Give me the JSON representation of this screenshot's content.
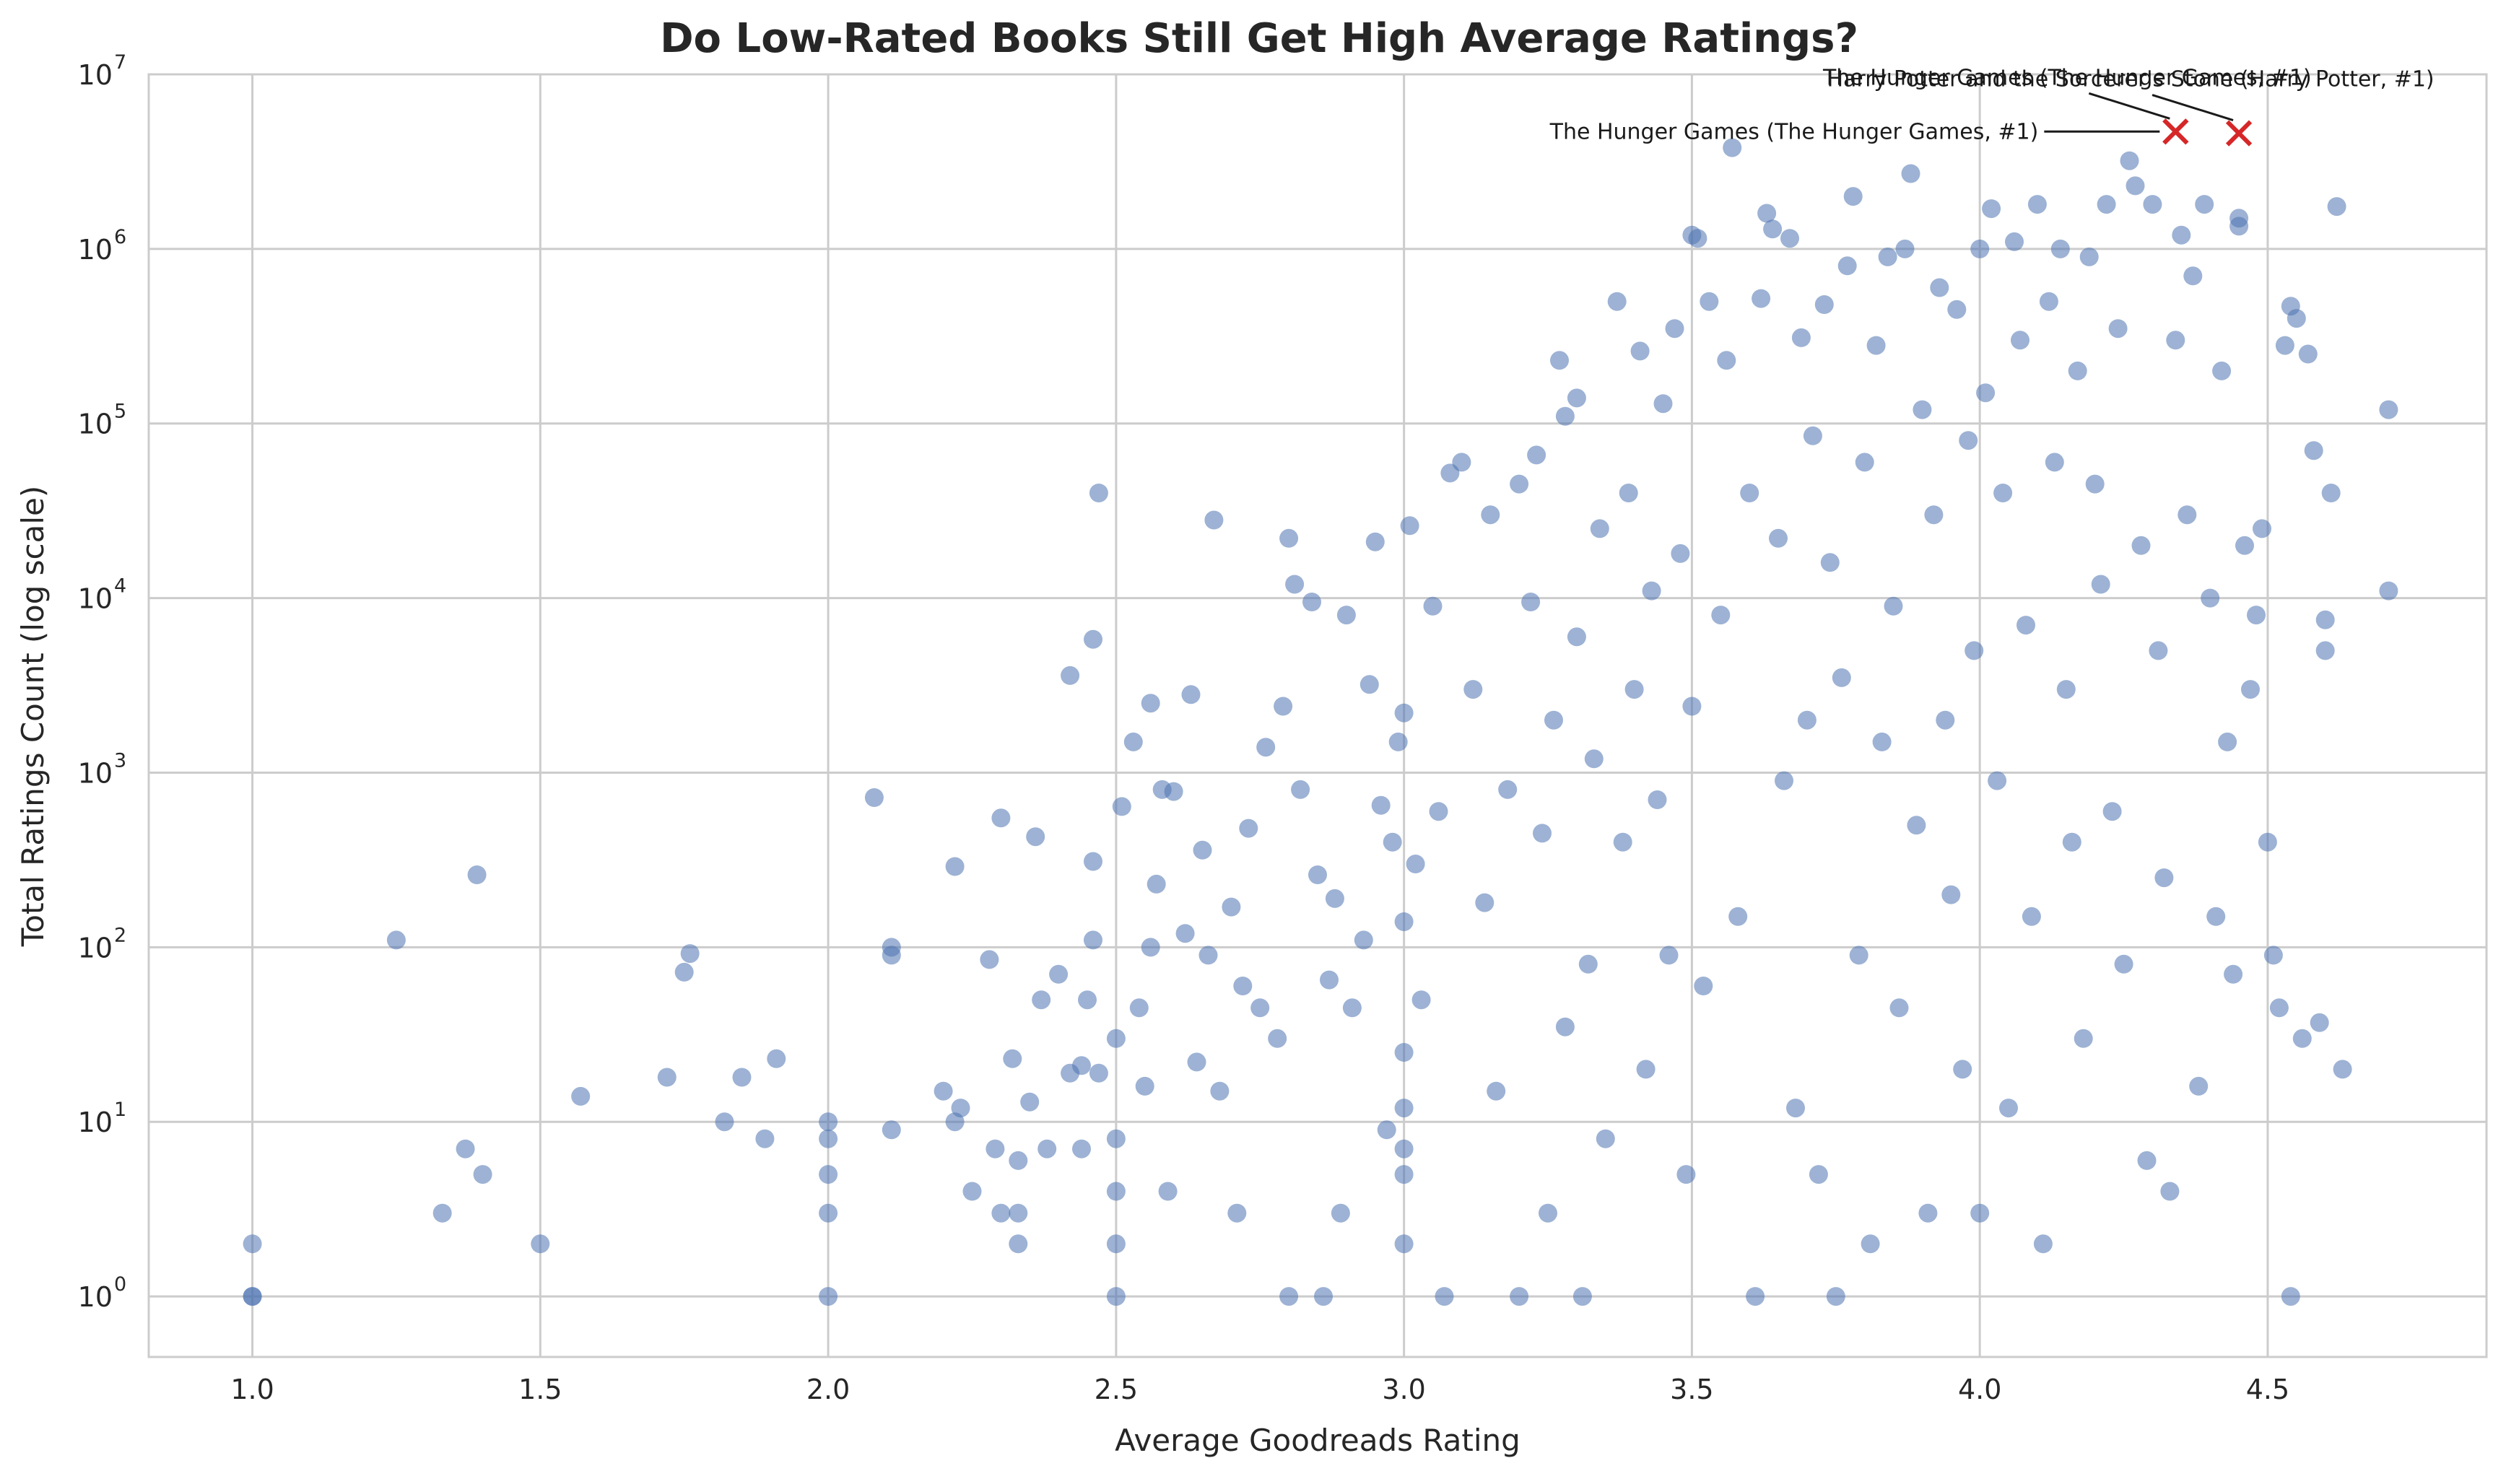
{
  "chart_data": {
    "type": "scatter",
    "title": "Do Low-Rated Books Still Get High Average Ratings?",
    "xlabel": "Average Goodreads Rating",
    "ylabel": "Total Ratings Count (log scale)",
    "xlim": [
      0.82,
      4.88
    ],
    "ylim": [
      0.45,
      10000000
    ],
    "y_scale": "log",
    "grid": true,
    "point_color": "#4c72b0",
    "highlight_color": "#d62728",
    "x_ticks": [
      {
        "value": 1.0,
        "label": "1.0"
      },
      {
        "value": 1.5,
        "label": "1.5"
      },
      {
        "value": 2.0,
        "label": "2.0"
      },
      {
        "value": 2.5,
        "label": "2.5"
      },
      {
        "value": 3.0,
        "label": "3.0"
      },
      {
        "value": 3.5,
        "label": "3.5"
      },
      {
        "value": 4.0,
        "label": "4.0"
      },
      {
        "value": 4.5,
        "label": "4.5"
      }
    ],
    "y_ticks": [
      {
        "value": 1,
        "base": "10",
        "exp": "0"
      },
      {
        "value": 10,
        "base": "10",
        "exp": "1"
      },
      {
        "value": 100,
        "base": "10",
        "exp": "2"
      },
      {
        "value": 1000,
        "base": "10",
        "exp": "3"
      },
      {
        "value": 10000,
        "base": "10",
        "exp": "4"
      },
      {
        "value": 100000,
        "base": "10",
        "exp": "5"
      },
      {
        "value": 1000000,
        "base": "10",
        "exp": "6"
      },
      {
        "value": 10000000,
        "base": "10",
        "exp": "7"
      }
    ],
    "points": [
      [
        1.0,
        1
      ],
      [
        1.0,
        2
      ],
      [
        1.0,
        1
      ],
      [
        1.25,
        110
      ],
      [
        1.33,
        3
      ],
      [
        1.37,
        7
      ],
      [
        1.39,
        260
      ],
      [
        1.4,
        5
      ],
      [
        1.5,
        2
      ],
      [
        1.57,
        14
      ],
      [
        1.72,
        18
      ],
      [
        1.75,
        72
      ],
      [
        1.76,
        92
      ],
      [
        1.82,
        10
      ],
      [
        1.85,
        18
      ],
      [
        1.89,
        8
      ],
      [
        1.91,
        23
      ],
      [
        2.0,
        1
      ],
      [
        2.0,
        3
      ],
      [
        2.0,
        5
      ],
      [
        2.0,
        8
      ],
      [
        2.0,
        10
      ],
      [
        2.08,
        720
      ],
      [
        2.11,
        90
      ],
      [
        2.11,
        100
      ],
      [
        2.11,
        9
      ],
      [
        2.2,
        15
      ],
      [
        2.22,
        290
      ],
      [
        2.22,
        10
      ],
      [
        2.23,
        12
      ],
      [
        2.25,
        4
      ],
      [
        2.28,
        85
      ],
      [
        2.29,
        7
      ],
      [
        2.3,
        550
      ],
      [
        2.3,
        3
      ],
      [
        2.32,
        23
      ],
      [
        2.33,
        3
      ],
      [
        2.33,
        2
      ],
      [
        2.33,
        6
      ],
      [
        2.35,
        13
      ],
      [
        2.36,
        430
      ],
      [
        2.37,
        50
      ],
      [
        2.38,
        7
      ],
      [
        2.4,
        70
      ],
      [
        2.42,
        3600
      ],
      [
        2.42,
        19
      ],
      [
        2.44,
        21
      ],
      [
        2.44,
        7
      ],
      [
        2.45,
        50
      ],
      [
        2.46,
        5800
      ],
      [
        2.46,
        110
      ],
      [
        2.46,
        310
      ],
      [
        2.47,
        19
      ],
      [
        2.47,
        40000
      ],
      [
        2.5,
        4
      ],
      [
        2.5,
        2
      ],
      [
        2.5,
        1
      ],
      [
        2.5,
        8
      ],
      [
        2.5,
        30
      ],
      [
        2.51,
        640
      ],
      [
        2.53,
        1500
      ],
      [
        2.54,
        45
      ],
      [
        2.55,
        16
      ],
      [
        2.56,
        2500
      ],
      [
        2.56,
        100
      ],
      [
        2.57,
        230
      ],
      [
        2.58,
        800
      ],
      [
        2.59,
        4
      ],
      [
        2.6,
        780
      ],
      [
        2.62,
        120
      ],
      [
        2.63,
        2800
      ],
      [
        2.64,
        22
      ],
      [
        2.65,
        360
      ],
      [
        2.66,
        90
      ],
      [
        2.67,
        28000
      ],
      [
        2.68,
        15
      ],
      [
        2.7,
        170
      ],
      [
        2.71,
        3
      ],
      [
        2.72,
        60
      ],
      [
        2.73,
        480
      ],
      [
        2.75,
        45
      ],
      [
        2.76,
        1400
      ],
      [
        2.78,
        30
      ],
      [
        2.79,
        2400
      ],
      [
        2.8,
        22000
      ],
      [
        2.8,
        1
      ],
      [
        2.81,
        12000
      ],
      [
        2.82,
        800
      ],
      [
        2.84,
        9500
      ],
      [
        2.85,
        260
      ],
      [
        2.86,
        1
      ],
      [
        2.87,
        65
      ],
      [
        2.88,
        190
      ],
      [
        2.89,
        3
      ],
      [
        2.9,
        8000
      ],
      [
        2.91,
        45
      ],
      [
        2.93,
        110
      ],
      [
        2.94,
        3200
      ],
      [
        2.95,
        21000
      ],
      [
        2.96,
        650
      ],
      [
        2.97,
        9
      ],
      [
        2.98,
        400
      ],
      [
        2.99,
        1500
      ],
      [
        3.0,
        2
      ],
      [
        3.0,
        5
      ],
      [
        3.0,
        7
      ],
      [
        3.0,
        12
      ],
      [
        3.0,
        25
      ],
      [
        3.0,
        140
      ],
      [
        3.0,
        2200
      ],
      [
        3.01,
        26000
      ],
      [
        3.02,
        300
      ],
      [
        3.03,
        50
      ],
      [
        3.05,
        9000
      ],
      [
        3.06,
        600
      ],
      [
        3.07,
        1
      ],
      [
        3.08,
        52000
      ],
      [
        3.1,
        60000
      ],
      [
        3.12,
        3000
      ],
      [
        3.14,
        180
      ],
      [
        3.15,
        30000
      ],
      [
        3.16,
        15
      ],
      [
        3.18,
        800
      ],
      [
        3.2,
        45000
      ],
      [
        3.2,
        1
      ],
      [
        3.22,
        9500
      ],
      [
        3.23,
        66000
      ],
      [
        3.24,
        450
      ],
      [
        3.25,
        3
      ],
      [
        3.26,
        2000
      ],
      [
        3.27,
        230000
      ],
      [
        3.28,
        110000
      ],
      [
        3.28,
        35
      ],
      [
        3.3,
        140000
      ],
      [
        3.3,
        6000
      ],
      [
        3.31,
        1
      ],
      [
        3.32,
        80
      ],
      [
        3.33,
        1200
      ],
      [
        3.34,
        25000
      ],
      [
        3.35,
        8
      ],
      [
        3.37,
        500000
      ],
      [
        3.38,
        400
      ],
      [
        3.39,
        40000
      ],
      [
        3.4,
        3000
      ],
      [
        3.41,
        260000
      ],
      [
        3.42,
        20
      ],
      [
        3.43,
        11000
      ],
      [
        3.44,
        700
      ],
      [
        3.45,
        130000
      ],
      [
        3.46,
        90
      ],
      [
        3.47,
        350000
      ],
      [
        3.48,
        18000
      ],
      [
        3.49,
        5
      ],
      [
        3.5,
        1200000
      ],
      [
        3.5,
        2400
      ],
      [
        3.51,
        1150000
      ],
      [
        3.52,
        60
      ],
      [
        3.53,
        500000
      ],
      [
        3.55,
        8000
      ],
      [
        3.56,
        230000
      ],
      [
        3.57,
        3800000
      ],
      [
        3.58,
        150
      ],
      [
        3.6,
        40000
      ],
      [
        3.61,
        1
      ],
      [
        3.62,
        520000
      ],
      [
        3.63,
        1600000
      ],
      [
        3.64,
        1300000
      ],
      [
        3.65,
        22000
      ],
      [
        3.66,
        900
      ],
      [
        3.67,
        1150000
      ],
      [
        3.68,
        12
      ],
      [
        3.69,
        310000
      ],
      [
        3.7,
        2000
      ],
      [
        3.71,
        85000
      ],
      [
        3.72,
        5
      ],
      [
        3.73,
        480000
      ],
      [
        3.74,
        16000
      ],
      [
        3.75,
        1
      ],
      [
        3.76,
        3500
      ],
      [
        3.77,
        800000
      ],
      [
        3.78,
        2000000
      ],
      [
        3.79,
        90
      ],
      [
        3.8,
        60000
      ],
      [
        3.81,
        2
      ],
      [
        3.82,
        280000
      ],
      [
        3.83,
        1500
      ],
      [
        3.84,
        900000
      ],
      [
        3.85,
        9000
      ],
      [
        3.86,
        45
      ],
      [
        3.87,
        1000000
      ],
      [
        3.88,
        2700000
      ],
      [
        3.89,
        500
      ],
      [
        3.9,
        120000
      ],
      [
        3.91,
        3
      ],
      [
        3.92,
        30000
      ],
      [
        3.93,
        600000
      ],
      [
        3.94,
        2000
      ],
      [
        3.95,
        200
      ],
      [
        3.96,
        450000
      ],
      [
        3.97,
        20
      ],
      [
        3.98,
        80000
      ],
      [
        3.99,
        5000
      ],
      [
        4.0,
        3
      ],
      [
        4.0,
        1000000
      ],
      [
        4.01,
        150000
      ],
      [
        4.02,
        1700000
      ],
      [
        4.03,
        900
      ],
      [
        4.04,
        40000
      ],
      [
        4.05,
        12
      ],
      [
        4.06,
        1100000
      ],
      [
        4.07,
        300000
      ],
      [
        4.08,
        7000
      ],
      [
        4.09,
        150
      ],
      [
        4.1,
        1800000
      ],
      [
        4.11,
        2
      ],
      [
        4.12,
        500000
      ],
      [
        4.13,
        60000
      ],
      [
        4.14,
        1000000
      ],
      [
        4.15,
        3000
      ],
      [
        4.16,
        400
      ],
      [
        4.17,
        200000
      ],
      [
        4.18,
        30
      ],
      [
        4.19,
        900000
      ],
      [
        4.2,
        45000
      ],
      [
        4.21,
        12000
      ],
      [
        4.22,
        1800000
      ],
      [
        4.23,
        600
      ],
      [
        4.24,
        350000
      ],
      [
        4.25,
        80
      ],
      [
        4.26,
        3200000
      ],
      [
        4.27,
        2300000
      ],
      [
        4.28,
        20000
      ],
      [
        4.29,
        6
      ],
      [
        4.3,
        1800000
      ],
      [
        4.31,
        5000
      ],
      [
        4.32,
        250
      ],
      [
        4.33,
        4
      ],
      [
        4.34,
        300000
      ],
      [
        4.35,
        1200000
      ],
      [
        4.36,
        30000
      ],
      [
        4.37,
        700000
      ],
      [
        4.38,
        16
      ],
      [
        4.39,
        1800000
      ],
      [
        4.4,
        10000
      ],
      [
        4.41,
        150
      ],
      [
        4.42,
        200000
      ],
      [
        4.43,
        1500
      ],
      [
        4.44,
        70
      ],
      [
        4.45,
        1500000
      ],
      [
        4.45,
        1350000
      ],
      [
        4.46,
        20000
      ],
      [
        4.47,
        3000
      ],
      [
        4.48,
        8000
      ],
      [
        4.49,
        25000
      ],
      [
        4.5,
        400
      ],
      [
        4.51,
        90
      ],
      [
        4.52,
        45
      ],
      [
        4.53,
        280000
      ],
      [
        4.54,
        470000
      ],
      [
        4.55,
        400000
      ],
      [
        4.56,
        30
      ],
      [
        4.57,
        250000
      ],
      [
        4.58,
        70000
      ],
      [
        4.59,
        37
      ],
      [
        4.6,
        7500
      ],
      [
        4.6,
        5000
      ],
      [
        4.61,
        40000
      ],
      [
        4.62,
        1750000
      ],
      [
        4.63,
        20
      ],
      [
        4.71,
        120000
      ],
      [
        4.71,
        11000
      ],
      [
        4.54,
        1
      ]
    ],
    "annotations": [
      {
        "x": 4.34,
        "y": 4700000,
        "label": "The Hunger Games (The Hunger Games, #1)"
      },
      {
        "x": 4.45,
        "y": 4600000,
        "label": "Harry Potter and the Sorcerer's Stone (Harry Potter, #1)"
      },
      {
        "x": 4.34,
        "y": 4700000,
        "label": "The Hunger Games (The Hunger Games, #1)"
      }
    ]
  }
}
